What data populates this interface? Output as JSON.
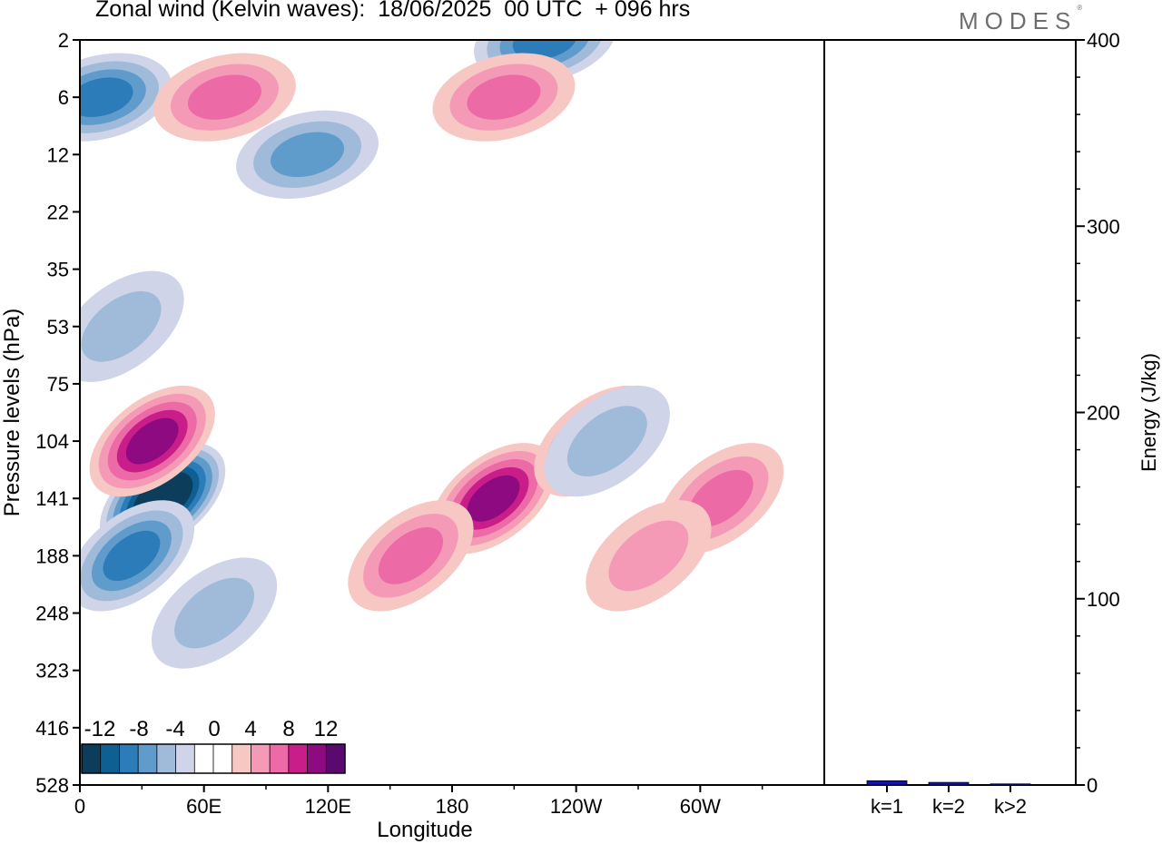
{
  "title": "Zonal wind (Kelvin waves):  18/06/2025  00 UTC  + 096 hrs",
  "logo": "MODES",
  "colors": {
    "neg": [
      "#0c3d5a",
      "#0e5f92",
      "#2b7cb8",
      "#5f9ccc",
      "#9fbbd9",
      "#cfd4e8"
    ],
    "zero": "#ffffff",
    "pos": [
      "#f7c7c4",
      "#f49ab6",
      "#ec6aa6",
      "#c91d8a",
      "#8e0a80",
      "#5a0a6e"
    ],
    "bar": "#1111bb"
  },
  "chart_data": [
    {
      "type": "heatmap",
      "title": "Zonal wind (Kelvin waves):  18/06/2025  00 UTC  + 096 hrs",
      "xlabel": "Longitude",
      "ylabel": "Pressure levels (hPa)",
      "xticks": [
        "0",
        "60E",
        "120E",
        "180",
        "120W",
        "60W"
      ],
      "xtick_values": [
        0,
        60,
        120,
        180,
        240,
        300
      ],
      "xlim": [
        0,
        360
      ],
      "yticks": [
        "2",
        "6",
        "12",
        "22",
        "35",
        "53",
        "75",
        "104",
        "141",
        "188",
        "248",
        "323",
        "416",
        "528"
      ],
      "colorbar": {
        "labels": [
          "-12",
          "-8",
          "-4",
          "0",
          "4",
          "8",
          "12"
        ],
        "levels": [
          -14,
          -12,
          -10,
          -8,
          -6,
          -4,
          -2,
          2,
          4,
          6,
          8,
          10,
          12,
          14
        ]
      },
      "features": [
        {
          "lon": 40,
          "level": 141,
          "value": -14
        },
        {
          "lon": 25,
          "level": 188,
          "value": -8
        },
        {
          "lon": 65,
          "level": 248,
          "value": -4
        },
        {
          "lon": 20,
          "level": 53,
          "value": -4
        },
        {
          "lon": 110,
          "level": 12,
          "value": -6
        },
        {
          "lon": 10,
          "level": 6,
          "value": -8
        },
        {
          "lon": 225,
          "level": 2,
          "value": -8
        },
        {
          "lon": 35,
          "level": 104,
          "value": 10
        },
        {
          "lon": 200,
          "level": 141,
          "value": 10
        },
        {
          "lon": 160,
          "level": 188,
          "value": 6
        },
        {
          "lon": 250,
          "level": 104,
          "value": 8
        },
        {
          "lon": 310,
          "level": 141,
          "value": 6
        },
        {
          "lon": 70,
          "level": 6,
          "value": 6
        },
        {
          "lon": 205,
          "level": 6,
          "value": 6
        },
        {
          "lon": 275,
          "level": 188,
          "value": 4
        },
        {
          "lon": 255,
          "level": 104,
          "value": -4
        }
      ]
    },
    {
      "type": "bar",
      "categories": [
        "k=1",
        "k=2",
        "k>2"
      ],
      "values": [
        2.3,
        1.4,
        0.6
      ],
      "ylabel": "Energy (J/kg)",
      "ylim": [
        0,
        400
      ],
      "yticks": [
        0,
        100,
        200,
        300,
        400
      ]
    }
  ]
}
